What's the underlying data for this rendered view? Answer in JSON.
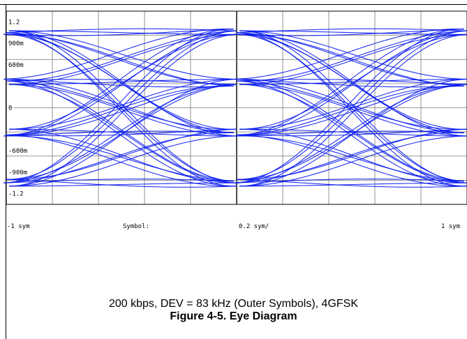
{
  "chart_data": {
    "type": "line",
    "title": "Eye Diagram",
    "x_axis": {
      "range": [
        -1,
        1
      ],
      "unit": "sym",
      "left_label": "-1 sym",
      "label": "Symbol:",
      "scale_label": "0.2 sym/",
      "right_label": "1 sym"
    },
    "y_axis": {
      "range": [
        -1.35,
        1.35
      ],
      "tick_labels": [
        {
          "value": 1.2,
          "text": "1.2"
        },
        {
          "value": 0.9,
          "text": "900m"
        },
        {
          "value": 0.6,
          "text": "600m"
        },
        {
          "value": 0,
          "text": "0"
        },
        {
          "value": -0.6,
          "text": "-600m"
        },
        {
          "value": -0.9,
          "text": "-900m"
        },
        {
          "value": -1.2,
          "text": "-1.2"
        }
      ]
    },
    "symbol_levels": [
      1.05,
      0.35,
      -0.35,
      -1.05
    ],
    "grid": true,
    "trace_color": "#0a1cf0"
  },
  "caption": {
    "conditions": "200 kbps, DEV = 83 kHz (Outer Symbols), 4GFSK",
    "figure_title": "Figure 4-5. Eye Diagram"
  }
}
